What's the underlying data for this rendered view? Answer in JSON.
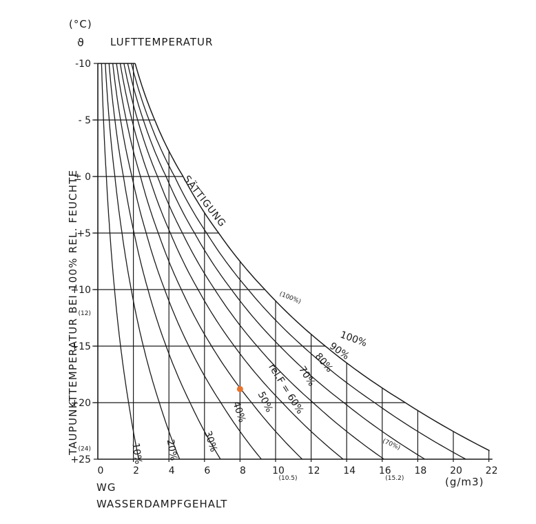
{
  "chart_data": {
    "type": "line",
    "title": "LUFTTEMPERATUR",
    "title_symbol": "ϑ",
    "y_unit": "(°C)",
    "ylabel": "TAUPUNKTTEMPERATUR BEI 100% REL. FEUCHTE",
    "xlabel_short": "WG",
    "xlabel": "WASSERDAMPFGEHALT",
    "x_unit": "(g/m3)",
    "x_ticks": [
      "0",
      "2",
      "4",
      "6",
      "8",
      "10",
      "12",
      "14",
      "16",
      "18",
      "20",
      "22"
    ],
    "x_tick_values": [
      0,
      2,
      4,
      6,
      8,
      10,
      12,
      14,
      16,
      18,
      20,
      22
    ],
    "y_ticks": [
      "-10",
      "- 5",
      "± 0",
      "+5",
      "+10",
      "+15",
      "+20",
      "+25"
    ],
    "y_tick_values": [
      -10,
      -5,
      0,
      5,
      10,
      15,
      20,
      25
    ],
    "y_axis_direction": "downward",
    "xlim": [
      0,
      22
    ],
    "ylim": [
      -10,
      25
    ],
    "secondary_x_labels": [
      {
        "x": 10,
        "text": "(10.5)"
      },
      {
        "x": 16,
        "text": "(15.2)"
      }
    ],
    "secondary_y_labels": [
      {
        "y": 12,
        "text": "(12)"
      },
      {
        "y": 24,
        "text": "(24)"
      }
    ],
    "saturation_label": "SÄTTIGUNG",
    "annotations": [
      {
        "text": "(100%)",
        "x": 10.2,
        "y": 10.5
      },
      {
        "text": "(70%)",
        "x": 16,
        "y": 23.5
      },
      {
        "text": "rel.F = 60%",
        "x": 9.6,
        "y": 16.8
      }
    ],
    "series": [
      {
        "name": "100%",
        "label_text": "100%",
        "rh": 100
      },
      {
        "name": "90%",
        "label_text": "90%",
        "rh": 90
      },
      {
        "name": "80%",
        "label_text": "80%",
        "rh": 80
      },
      {
        "name": "70%",
        "label_text": "70%",
        "rh": 70
      },
      {
        "name": "60%",
        "label_text": "",
        "rh": 60
      },
      {
        "name": "50%",
        "label_text": "50%",
        "rh": 50
      },
      {
        "name": "40%",
        "label_text": "40%",
        "rh": 40
      },
      {
        "name": "30%",
        "label_text": "30%",
        "rh": 30
      },
      {
        "name": "20%",
        "label_text": "20%",
        "rh": 20
      },
      {
        "name": "10%",
        "label_text": "10%",
        "rh": 10
      }
    ],
    "saturation_points": [
      {
        "y": -10,
        "x": 2.1
      },
      {
        "y": -5,
        "x": 3.2
      },
      {
        "y": 0,
        "x": 4.8
      },
      {
        "y": 5,
        "x": 6.8
      },
      {
        "y": 10,
        "x": 9.4
      },
      {
        "y": 15,
        "x": 12.8
      },
      {
        "y": 20,
        "x": 17.3
      },
      {
        "y": 25,
        "x": 23.0
      }
    ],
    "marker": {
      "x": 8.0,
      "y": 18.8,
      "color": "#e8742c"
    },
    "grid": false,
    "line_color": "#1a1a1a"
  }
}
